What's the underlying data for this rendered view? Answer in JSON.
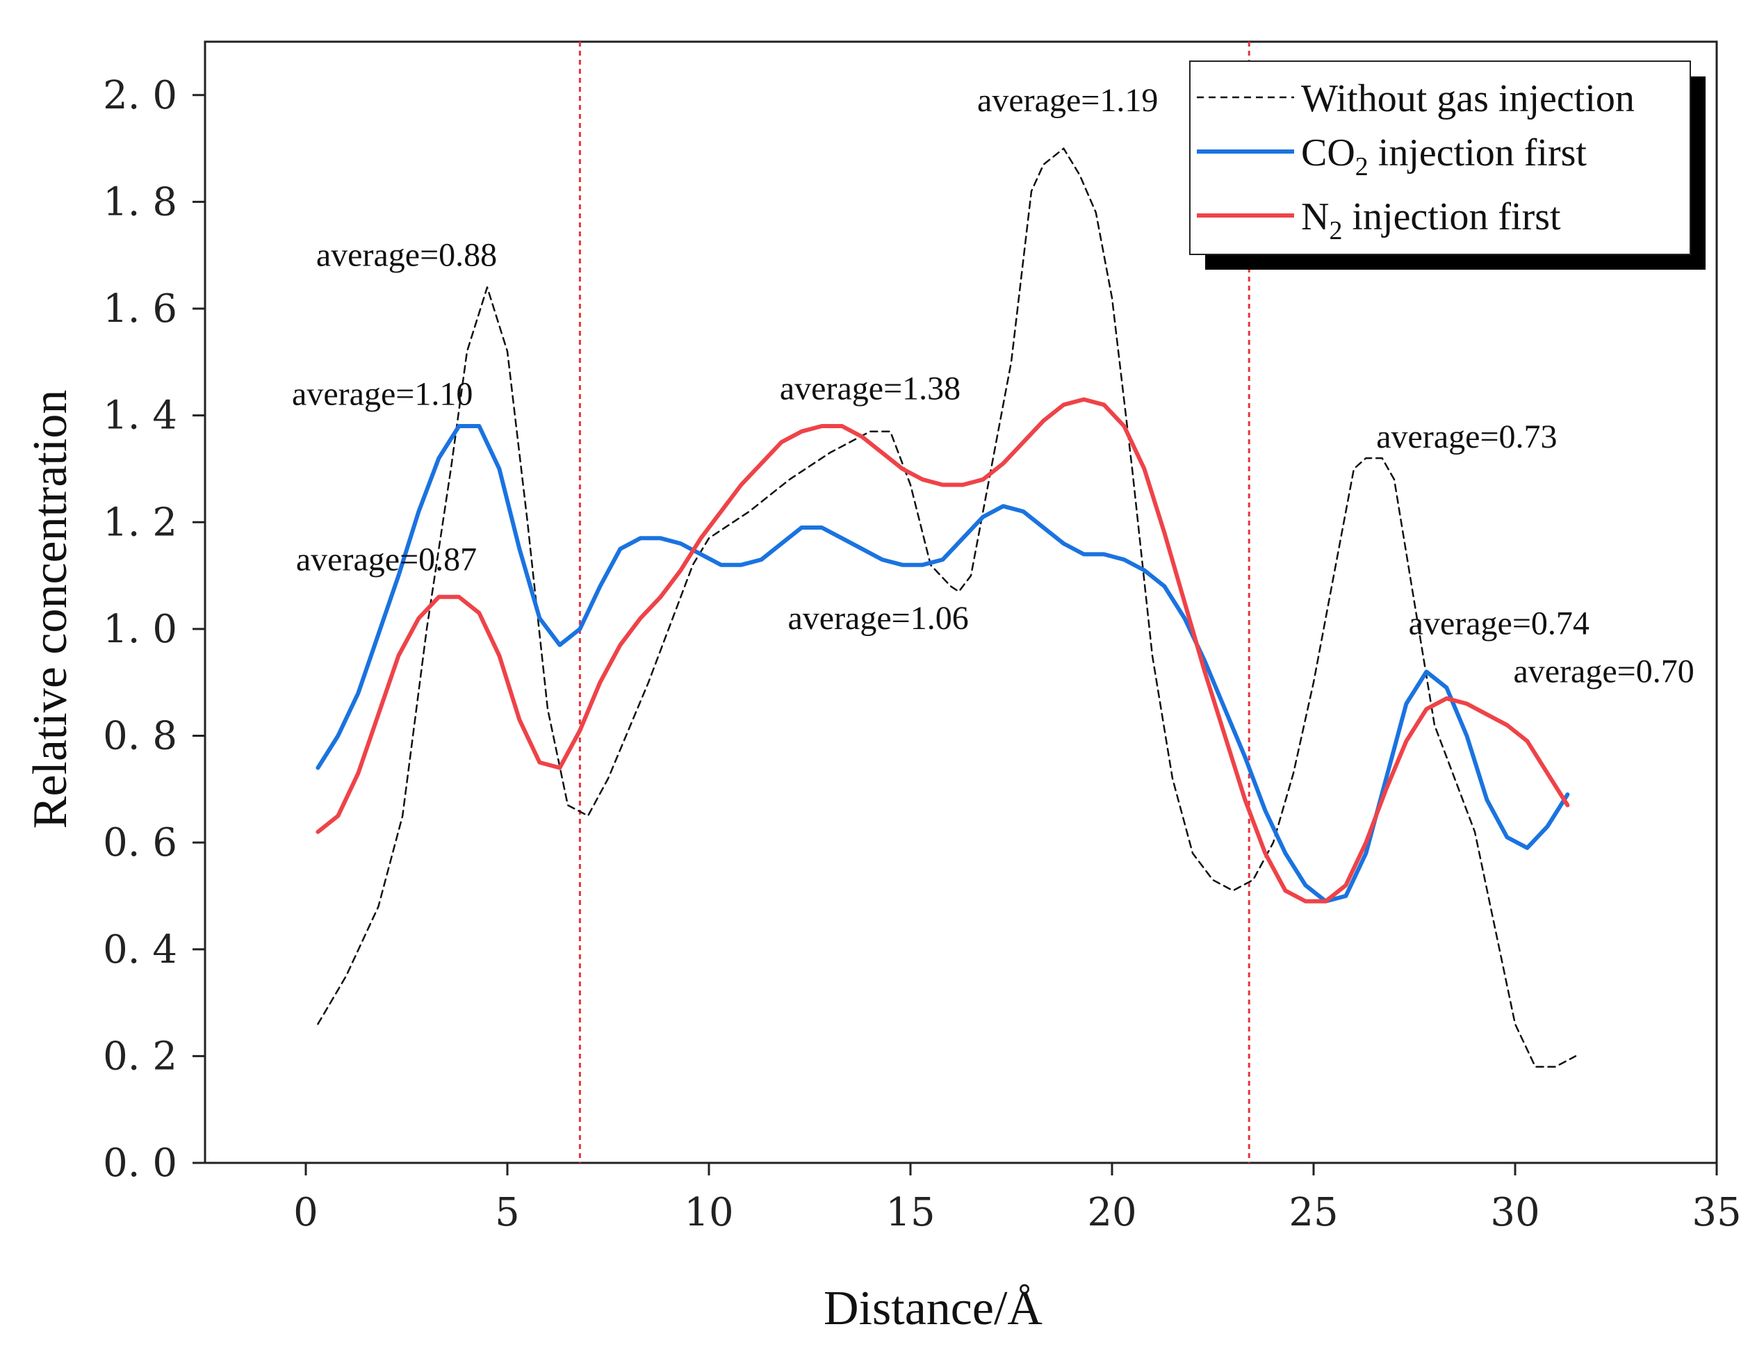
{
  "chart_data": {
    "type": "line",
    "title": "",
    "xlabel": "Distance/Å",
    "ylabel": "Relative concentration",
    "xlim": [
      -2.5,
      35
    ],
    "ylim": [
      0,
      2.1
    ],
    "xticks": [
      0,
      5,
      10,
      15,
      20,
      25,
      30,
      35
    ],
    "xtick_labels": [
      "0",
      "5",
      "10",
      "15",
      "20",
      "25",
      "30",
      "35"
    ],
    "yticks": [
      0.0,
      0.2,
      0.4,
      0.6,
      0.8,
      1.0,
      1.2,
      1.4,
      1.6,
      1.8,
      2.0
    ],
    "ytick_labels": [
      "0. 0",
      "0. 2",
      "0. 4",
      "0. 6",
      "0. 8",
      "1. 0",
      "1. 2",
      "1. 4",
      "1. 6",
      "1. 8",
      "2. 0"
    ],
    "grid": false,
    "legend_position": "top-right",
    "vlines": [
      {
        "x": 6.8,
        "color": "#e8343a",
        "style": "dotted"
      },
      {
        "x": 23.4,
        "color": "#e8343a",
        "style": "dotted"
      }
    ],
    "series": [
      {
        "name": "Without gas injection",
        "color": "#111111",
        "style": "dashed",
        "x": [
          0.3,
          1.0,
          1.8,
          2.4,
          3.0,
          3.6,
          4.0,
          4.5,
          5.0,
          5.5,
          6.0,
          6.5,
          7.0,
          7.5,
          8.0,
          8.5,
          9.0,
          9.6,
          10.0,
          11.0,
          12.0,
          13.0,
          14.0,
          14.5,
          15.0,
          15.5,
          16.0,
          16.2,
          16.5,
          17.0,
          17.5,
          18.0,
          18.3,
          18.8,
          19.2,
          19.6,
          20.0,
          20.5,
          21.0,
          21.5,
          22.0,
          22.5,
          23.0,
          23.5,
          24.0,
          24.5,
          25.0,
          25.5,
          26.0,
          26.3,
          26.7,
          27.0,
          27.5,
          28.0,
          28.5,
          29.0,
          29.5,
          30.0,
          30.5,
          31.0,
          31.5
        ],
        "values": [
          0.26,
          0.35,
          0.48,
          0.65,
          1.0,
          1.3,
          1.52,
          1.64,
          1.52,
          1.2,
          0.85,
          0.67,
          0.65,
          0.72,
          0.81,
          0.9,
          1.0,
          1.12,
          1.17,
          1.22,
          1.28,
          1.33,
          1.37,
          1.37,
          1.27,
          1.12,
          1.08,
          1.07,
          1.1,
          1.3,
          1.5,
          1.82,
          1.87,
          1.9,
          1.85,
          1.78,
          1.62,
          1.3,
          0.95,
          0.72,
          0.58,
          0.53,
          0.51,
          0.53,
          0.6,
          0.73,
          0.9,
          1.1,
          1.3,
          1.32,
          1.32,
          1.28,
          1.05,
          0.82,
          0.72,
          0.62,
          0.44,
          0.26,
          0.18,
          0.18,
          0.2
        ]
      },
      {
        "name": "CO2 injection first",
        "color": "#1a73e0",
        "style": "solid",
        "x": [
          0.3,
          0.8,
          1.3,
          1.8,
          2.3,
          2.8,
          3.3,
          3.8,
          4.3,
          4.8,
          5.3,
          5.8,
          6.3,
          6.8,
          7.3,
          7.8,
          8.3,
          8.8,
          9.3,
          9.8,
          10.3,
          10.8,
          11.3,
          11.8,
          12.3,
          12.8,
          13.3,
          13.8,
          14.3,
          14.8,
          15.3,
          15.8,
          16.3,
          16.8,
          17.3,
          17.8,
          18.3,
          18.8,
          19.3,
          19.8,
          20.3,
          20.8,
          21.3,
          21.8,
          22.3,
          22.8,
          23.3,
          23.8,
          24.3,
          24.8,
          25.3,
          25.8,
          26.3,
          26.8,
          27.3,
          27.8,
          28.3,
          28.8,
          29.3,
          29.8,
          30.3,
          30.8,
          31.3
        ],
        "values": [
          0.74,
          0.8,
          0.88,
          0.99,
          1.1,
          1.22,
          1.32,
          1.38,
          1.38,
          1.3,
          1.15,
          1.02,
          0.97,
          1.0,
          1.08,
          1.15,
          1.17,
          1.17,
          1.16,
          1.14,
          1.12,
          1.12,
          1.13,
          1.16,
          1.19,
          1.19,
          1.17,
          1.15,
          1.13,
          1.12,
          1.12,
          1.13,
          1.17,
          1.21,
          1.23,
          1.22,
          1.19,
          1.16,
          1.14,
          1.14,
          1.13,
          1.11,
          1.08,
          1.02,
          0.94,
          0.85,
          0.76,
          0.66,
          0.58,
          0.52,
          0.49,
          0.5,
          0.58,
          0.72,
          0.86,
          0.92,
          0.89,
          0.8,
          0.68,
          0.61,
          0.59,
          0.63,
          0.69
        ]
      },
      {
        "name": "N2 injection first",
        "color": "#ee4348",
        "style": "solid",
        "x": [
          0.3,
          0.8,
          1.3,
          1.8,
          2.3,
          2.8,
          3.3,
          3.8,
          4.3,
          4.8,
          5.3,
          5.8,
          6.3,
          6.8,
          7.3,
          7.8,
          8.3,
          8.8,
          9.3,
          9.8,
          10.3,
          10.8,
          11.3,
          11.8,
          12.3,
          12.8,
          13.3,
          13.8,
          14.3,
          14.8,
          15.3,
          15.8,
          16.3,
          16.8,
          17.3,
          17.8,
          18.3,
          18.8,
          19.3,
          19.8,
          20.3,
          20.8,
          21.3,
          21.8,
          22.3,
          22.8,
          23.3,
          23.8,
          24.3,
          24.8,
          25.3,
          25.8,
          26.3,
          26.8,
          27.3,
          27.8,
          28.3,
          28.8,
          29.3,
          29.8,
          30.3,
          30.8,
          31.3
        ],
        "values": [
          0.62,
          0.65,
          0.73,
          0.84,
          0.95,
          1.02,
          1.06,
          1.06,
          1.03,
          0.95,
          0.83,
          0.75,
          0.74,
          0.81,
          0.9,
          0.97,
          1.02,
          1.06,
          1.11,
          1.17,
          1.22,
          1.27,
          1.31,
          1.35,
          1.37,
          1.38,
          1.38,
          1.36,
          1.33,
          1.3,
          1.28,
          1.27,
          1.27,
          1.28,
          1.31,
          1.35,
          1.39,
          1.42,
          1.43,
          1.42,
          1.38,
          1.3,
          1.18,
          1.05,
          0.92,
          0.8,
          0.68,
          0.58,
          0.51,
          0.49,
          0.49,
          0.52,
          0.6,
          0.7,
          0.79,
          0.85,
          0.87,
          0.86,
          0.84,
          0.82,
          0.79,
          0.73,
          0.67
        ]
      }
    ],
    "annotations": [
      {
        "text": "average=0.88",
        "x": 2.5,
        "y": 1.68
      },
      {
        "text": "average=1.10",
        "x": 1.9,
        "y": 1.42
      },
      {
        "text": "average=0.87",
        "x": 2.0,
        "y": 1.11
      },
      {
        "text": "average=1.38",
        "x": 14.0,
        "y": 1.43
      },
      {
        "text": "average=1.06",
        "x": 14.2,
        "y": 1.0
      },
      {
        "text": "average=1.19",
        "x": 18.9,
        "y": 1.97
      },
      {
        "text": "average=0.73",
        "x": 28.8,
        "y": 1.34
      },
      {
        "text": "average=0.74",
        "x": 29.6,
        "y": 0.99
      },
      {
        "text": "average=0.70",
        "x": 32.2,
        "y": 0.9
      }
    ]
  }
}
